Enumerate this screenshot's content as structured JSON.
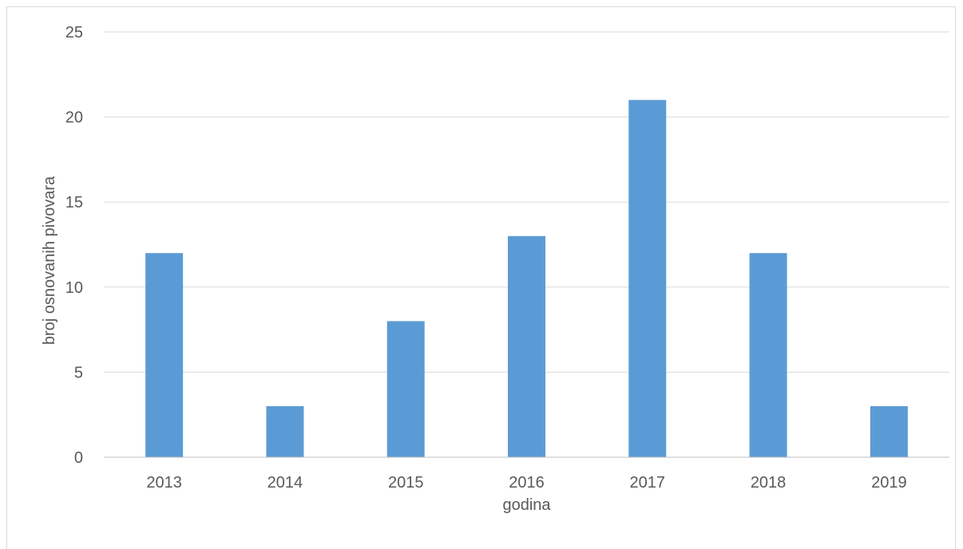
{
  "chart_data": {
    "type": "bar",
    "categories": [
      "2013",
      "2014",
      "2015",
      "2016",
      "2017",
      "2018",
      "2019"
    ],
    "values": [
      12,
      3,
      8,
      13,
      21,
      12,
      3
    ],
    "title": "",
    "xlabel": "godina",
    "ylabel": "broj osnovanih pivovara",
    "ylim": [
      0,
      25
    ],
    "yticks": [
      0,
      5,
      10,
      15,
      20,
      25
    ],
    "grid": true,
    "legend": "none",
    "colors": {
      "bar": "#5b9bd5",
      "grid": "#d9d9d9",
      "axis": "#bfbfbf",
      "text": "#595959"
    }
  }
}
